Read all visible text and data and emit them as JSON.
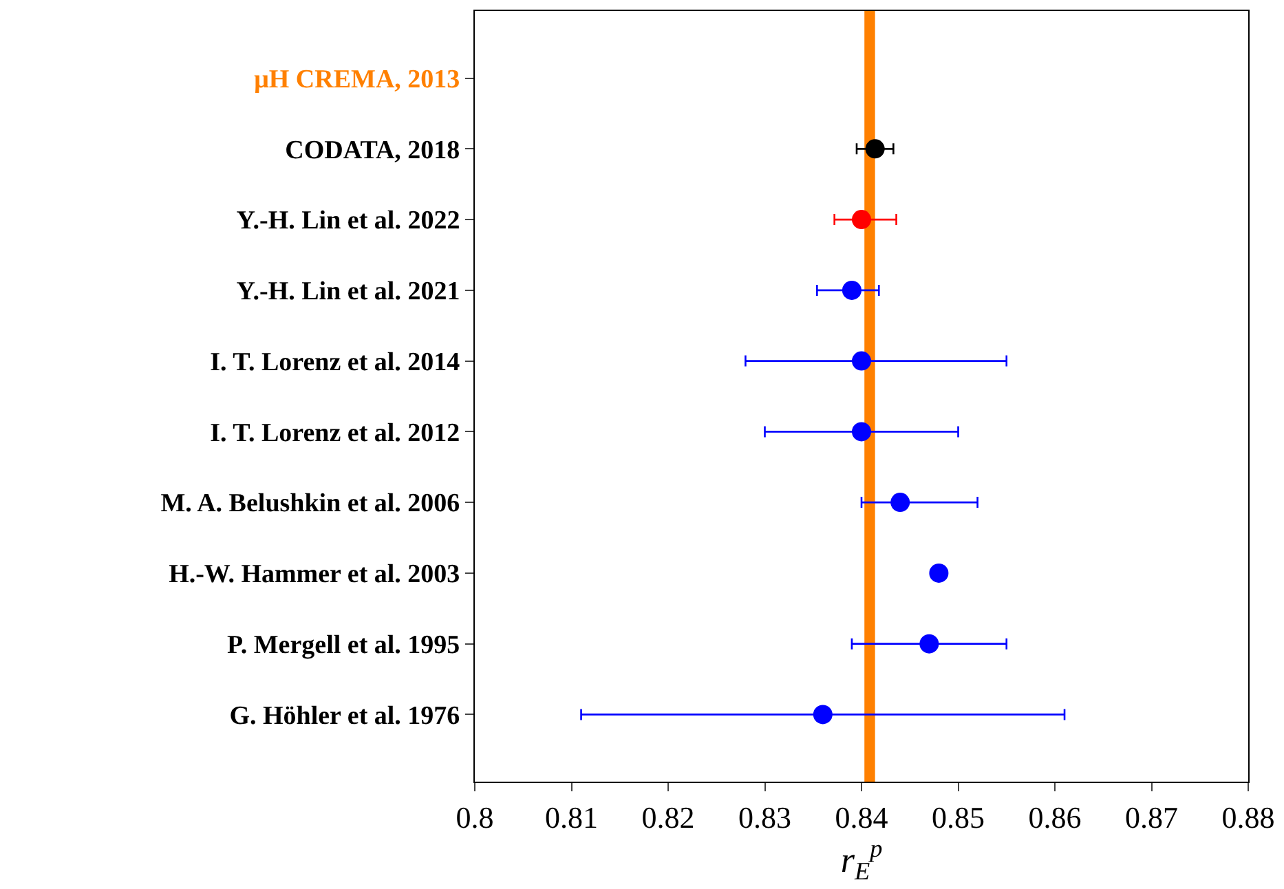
{
  "chart_data": {
    "type": "scatter",
    "orientation": "horizontal",
    "xlabel": "r$_{E}$$^{p}$",
    "categories": [
      "μH CREMA, 2013",
      "CODATA, 2018",
      "Y.-H. Lin et al. 2022",
      "Y.-H. Lin et al. 2021",
      "I. T. Lorenz et al. 2014",
      "I. T. Lorenz et al. 2012",
      "M. A. Belushkin et al. 2006",
      "H.-W. Hammer et al. 2003",
      "P. Mergell et al. 1995",
      "G. Höhler et al. 1976"
    ],
    "values": [
      null,
      0.8414,
      0.84,
      0.839,
      0.84,
      0.84,
      0.844,
      0.848,
      0.847,
      0.836
    ],
    "errors": [
      null,
      [
        0.8395,
        0.8433
      ],
      [
        0.8372,
        0.8436
      ],
      [
        0.8354,
        0.8418
      ],
      [
        0.828,
        0.855
      ],
      [
        0.83,
        0.85
      ],
      [
        0.84,
        0.852
      ],
      null,
      [
        0.839,
        0.855
      ],
      [
        0.811,
        0.861
      ]
    ],
    "colors": [
      "#ff8000",
      "#000000",
      "#ff0000",
      "#0000ff",
      "#0000ff",
      "#0000ff",
      "#0000ff",
      "#0000ff",
      "#0000ff",
      "#0000ff"
    ],
    "bands": [
      {
        "axis": "x",
        "from": 0.8403,
        "to": 0.8414,
        "color": "#ff8000"
      }
    ],
    "xlim": [
      0.8,
      0.88
    ],
    "xticks": [
      0.8,
      0.81,
      0.82,
      0.83,
      0.84,
      0.85,
      0.86,
      0.87,
      0.88
    ],
    "marker": "circle",
    "grid": false,
    "legend": false
  }
}
